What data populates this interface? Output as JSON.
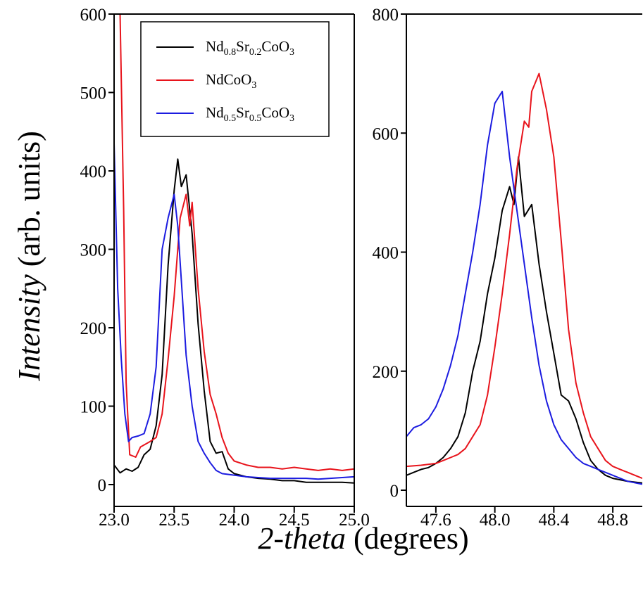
{
  "colors": {
    "black": "#000000",
    "red": "#e8141c",
    "blue": "#1c1ce0"
  },
  "ylabel": {
    "italic": "Intensity",
    "rest": "(arb. units)"
  },
  "xlabel": {
    "italic": "2-theta",
    "rest": "(degrees)"
  },
  "legend": [
    {
      "parts": [
        {
          "t": "Nd"
        },
        {
          "t": "0.8",
          "sub": true
        },
        {
          "t": "Sr"
        },
        {
          "t": "0.2",
          "sub": true
        },
        {
          "t": "CoO"
        },
        {
          "t": "3",
          "sub": true
        }
      ],
      "color": "#000000"
    },
    {
      "parts": [
        {
          "t": "NdCoO"
        },
        {
          "t": "3",
          "sub": true
        }
      ],
      "color": "#e8141c"
    },
    {
      "parts": [
        {
          "t": "Nd"
        },
        {
          "t": "0.5",
          "sub": true
        },
        {
          "t": "Sr"
        },
        {
          "t": "0.5",
          "sub": true
        },
        {
          "t": "CoO"
        },
        {
          "t": "3",
          "sub": true
        }
      ],
      "color": "#1c1ce0"
    }
  ],
  "chart_data": [
    {
      "type": "line",
      "xlim": [
        23.0,
        25.0
      ],
      "ylim": [
        0,
        600
      ],
      "xticks": [
        "23.0",
        "23.5",
        "24.0",
        "24.5",
        "25.0"
      ],
      "yticks": [
        "0",
        "100",
        "200",
        "300",
        "400",
        "500",
        "600"
      ],
      "grid": false,
      "legend_position": "top-right",
      "series": [
        {
          "name": "Nd0.8Sr0.2CoO3",
          "color": "#000000",
          "x": [
            23.0,
            23.05,
            23.1,
            23.15,
            23.2,
            23.25,
            23.3,
            23.35,
            23.4,
            23.45,
            23.5,
            23.53,
            23.56,
            23.6,
            23.65,
            23.7,
            23.75,
            23.8,
            23.85,
            23.9,
            23.95,
            24.0,
            24.1,
            24.2,
            24.3,
            24.4,
            24.5,
            24.6,
            24.7,
            24.8,
            24.9,
            25.0
          ],
          "y": [
            25,
            15,
            20,
            17,
            22,
            38,
            45,
            75,
            140,
            280,
            375,
            415,
            380,
            395,
            320,
            205,
            120,
            55,
            40,
            42,
            20,
            14,
            10,
            8,
            7,
            5,
            5,
            3,
            3,
            3,
            3,
            2
          ]
        },
        {
          "name": "NdCoO3",
          "color": "#e8141c",
          "x": [
            23.05,
            23.08,
            23.1,
            23.13,
            23.18,
            23.22,
            23.3,
            23.35,
            23.4,
            23.45,
            23.5,
            23.55,
            23.6,
            23.63,
            23.65,
            23.7,
            23.75,
            23.8,
            23.85,
            23.9,
            23.95,
            24.0,
            24.1,
            24.2,
            24.3,
            24.4,
            24.5,
            24.6,
            24.7,
            24.8,
            24.9,
            25.0
          ],
          "y": [
            600,
            350,
            130,
            38,
            35,
            48,
            55,
            60,
            90,
            160,
            240,
            340,
            370,
            330,
            360,
            250,
            170,
            115,
            90,
            60,
            40,
            30,
            25,
            22,
            22,
            20,
            22,
            20,
            18,
            20,
            18,
            20
          ]
        },
        {
          "name": "Nd0.5Sr0.5CoO3",
          "color": "#1c1ce0",
          "x": [
            23.0,
            23.03,
            23.06,
            23.09,
            23.12,
            23.15,
            23.2,
            23.25,
            23.3,
            23.35,
            23.4,
            23.45,
            23.5,
            23.53,
            23.56,
            23.6,
            23.65,
            23.7,
            23.75,
            23.8,
            23.85,
            23.9,
            24.0,
            24.1,
            24.2,
            24.3,
            24.4,
            24.5,
            24.6,
            24.7,
            24.8,
            24.9,
            25.0
          ],
          "y": [
            435,
            250,
            160,
            90,
            55,
            60,
            62,
            65,
            90,
            150,
            300,
            340,
            370,
            330,
            260,
            165,
            100,
            55,
            40,
            28,
            18,
            14,
            12,
            10,
            9,
            8,
            8,
            8,
            8,
            7,
            8,
            9,
            10
          ]
        }
      ]
    },
    {
      "type": "line",
      "xlim": [
        47.4,
        49.0
      ],
      "ylim": [
        0,
        800
      ],
      "xticks": [
        "47.6",
        "48.0",
        "48.4",
        "48.8"
      ],
      "yticks": [
        "0",
        "200",
        "400",
        "600",
        "800"
      ],
      "grid": false,
      "series": [
        {
          "name": "Nd0.8Sr0.2CoO3",
          "color": "#000000",
          "x": [
            47.4,
            47.45,
            47.5,
            47.55,
            47.6,
            47.65,
            47.7,
            47.75,
            47.8,
            47.85,
            47.9,
            47.95,
            48.0,
            48.05,
            48.1,
            48.13,
            48.16,
            48.2,
            48.25,
            48.3,
            48.35,
            48.4,
            48.45,
            48.5,
            48.55,
            48.6,
            48.65,
            48.7,
            48.75,
            48.8,
            48.9,
            49.0
          ],
          "y": [
            25,
            30,
            35,
            38,
            45,
            55,
            70,
            90,
            130,
            200,
            250,
            330,
            390,
            470,
            510,
            480,
            560,
            460,
            480,
            380,
            300,
            230,
            160,
            150,
            120,
            80,
            50,
            35,
            25,
            20,
            15,
            12
          ]
        },
        {
          "name": "NdCoO3",
          "color": "#e8141c",
          "x": [
            47.4,
            47.5,
            47.6,
            47.7,
            47.75,
            47.8,
            47.85,
            47.9,
            47.95,
            48.0,
            48.05,
            48.1,
            48.15,
            48.2,
            48.23,
            48.25,
            48.3,
            48.35,
            48.4,
            48.45,
            48.5,
            48.55,
            48.6,
            48.65,
            48.7,
            48.75,
            48.8,
            48.85,
            48.9,
            48.95,
            49.0
          ],
          "y": [
            40,
            42,
            45,
            55,
            60,
            70,
            90,
            110,
            160,
            240,
            330,
            430,
            540,
            620,
            610,
            670,
            700,
            640,
            560,
            420,
            270,
            180,
            130,
            90,
            70,
            50,
            40,
            35,
            30,
            25,
            20
          ]
        },
        {
          "name": "Nd0.5Sr0.5CoO3",
          "color": "#1c1ce0",
          "x": [
            47.4,
            47.45,
            47.5,
            47.55,
            47.6,
            47.65,
            47.7,
            47.75,
            47.8,
            47.85,
            47.9,
            47.95,
            48.0,
            48.05,
            48.1,
            48.15,
            48.2,
            48.25,
            48.3,
            48.35,
            48.4,
            48.45,
            48.5,
            48.55,
            48.6,
            48.65,
            48.7,
            48.8,
            48.9,
            49.0
          ],
          "y": [
            90,
            105,
            110,
            120,
            140,
            170,
            210,
            260,
            330,
            400,
            480,
            580,
            650,
            670,
            560,
            470,
            380,
            290,
            210,
            150,
            110,
            85,
            70,
            55,
            45,
            40,
            35,
            25,
            15,
            10
          ]
        }
      ]
    }
  ]
}
